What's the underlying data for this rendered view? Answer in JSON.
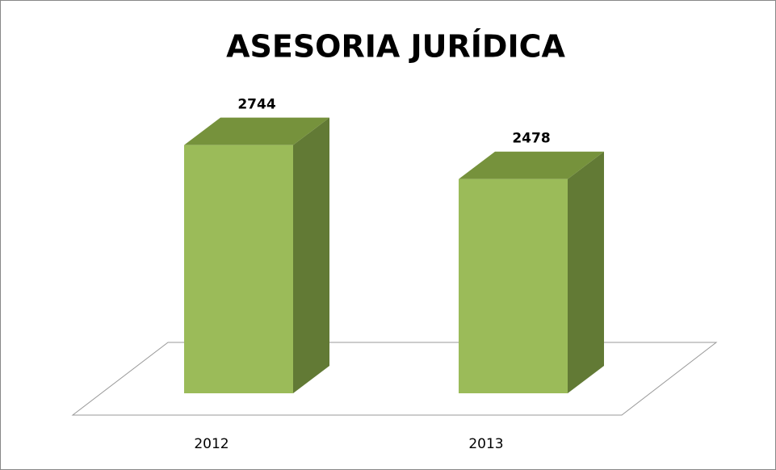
{
  "chart_data": {
    "type": "bar3d",
    "title": "ASESORIA JURÍDICA",
    "categories": [
      "2012",
      "2013"
    ],
    "values": [
      2744,
      2478
    ],
    "color": "#9bbb59",
    "side_color": "#627a35",
    "top_color": "#76923c",
    "ylim": [
      800,
      2900
    ]
  }
}
